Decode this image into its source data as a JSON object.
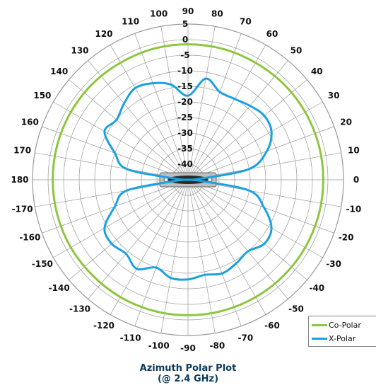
{
  "chart_data": {
    "type": "polar",
    "title_line1": "Azimuth Polar Plot",
    "title_line2": "(@ 2.4 GHz)",
    "angle_labels": [
      0,
      10,
      20,
      30,
      40,
      50,
      60,
      70,
      80,
      90,
      100,
      110,
      120,
      130,
      140,
      150,
      160,
      170,
      180,
      -170,
      -160,
      -150,
      -140,
      -130,
      -120,
      -110,
      -100,
      -90,
      -80,
      -70,
      -60,
      -50,
      -40,
      -30,
      -20,
      -10
    ],
    "radial_labels": [
      5,
      0,
      -5,
      -10,
      -15,
      -20,
      -25,
      -30,
      -35,
      -40
    ],
    "rlim": [
      -45,
      5
    ],
    "grid": true,
    "legend_position": "bottom-right",
    "colors": {
      "co_polar": "#8dc63f",
      "x_polar": "#1ba1e2",
      "grid": "#999999"
    },
    "series": [
      {
        "name": "Co-Polar",
        "angles": [
          0,
          15,
          30,
          45,
          60,
          75,
          90,
          105,
          120,
          135,
          150,
          165,
          180,
          195,
          210,
          225,
          240,
          255,
          270,
          285,
          300,
          315,
          330,
          345
        ],
        "values": [
          -1.5,
          -1.5,
          -1.5,
          -1.5,
          -1.6,
          -1.5,
          -1.5,
          -1.5,
          -1.6,
          -1.5,
          -1.5,
          -1.5,
          -1.5,
          -1.5,
          -1.5,
          -1.6,
          -1.5,
          -1.5,
          -1.5,
          -1.5,
          -1.5,
          -1.5,
          -1.5,
          -1.5
        ]
      },
      {
        "name": "X-Polar",
        "angles": [
          0,
          5,
          10,
          20,
          30,
          40,
          50,
          60,
          70,
          80,
          90,
          100,
          110,
          120,
          130,
          140,
          150,
          160,
          170,
          175,
          180,
          185,
          190,
          200,
          210,
          220,
          230,
          240,
          250,
          260,
          270,
          280,
          290,
          300,
          310,
          320,
          330,
          340,
          350,
          355
        ],
        "values": [
          -45,
          -41,
          -25,
          -18,
          -14,
          -13,
          -14,
          -15,
          -15,
          -12,
          -18,
          -14,
          -12,
          -11,
          -13,
          -15,
          -14,
          -20,
          -25,
          -41,
          -45,
          -41,
          -25,
          -20,
          -14,
          -13,
          -14,
          -12,
          -15,
          -13,
          -13,
          -14,
          -13,
          -14,
          -15,
          -13,
          -14,
          -19,
          -25,
          -41
        ]
      }
    ]
  },
  "legend": {
    "items": [
      {
        "label": "Co-Polar"
      },
      {
        "label": "X-Polar"
      }
    ]
  }
}
